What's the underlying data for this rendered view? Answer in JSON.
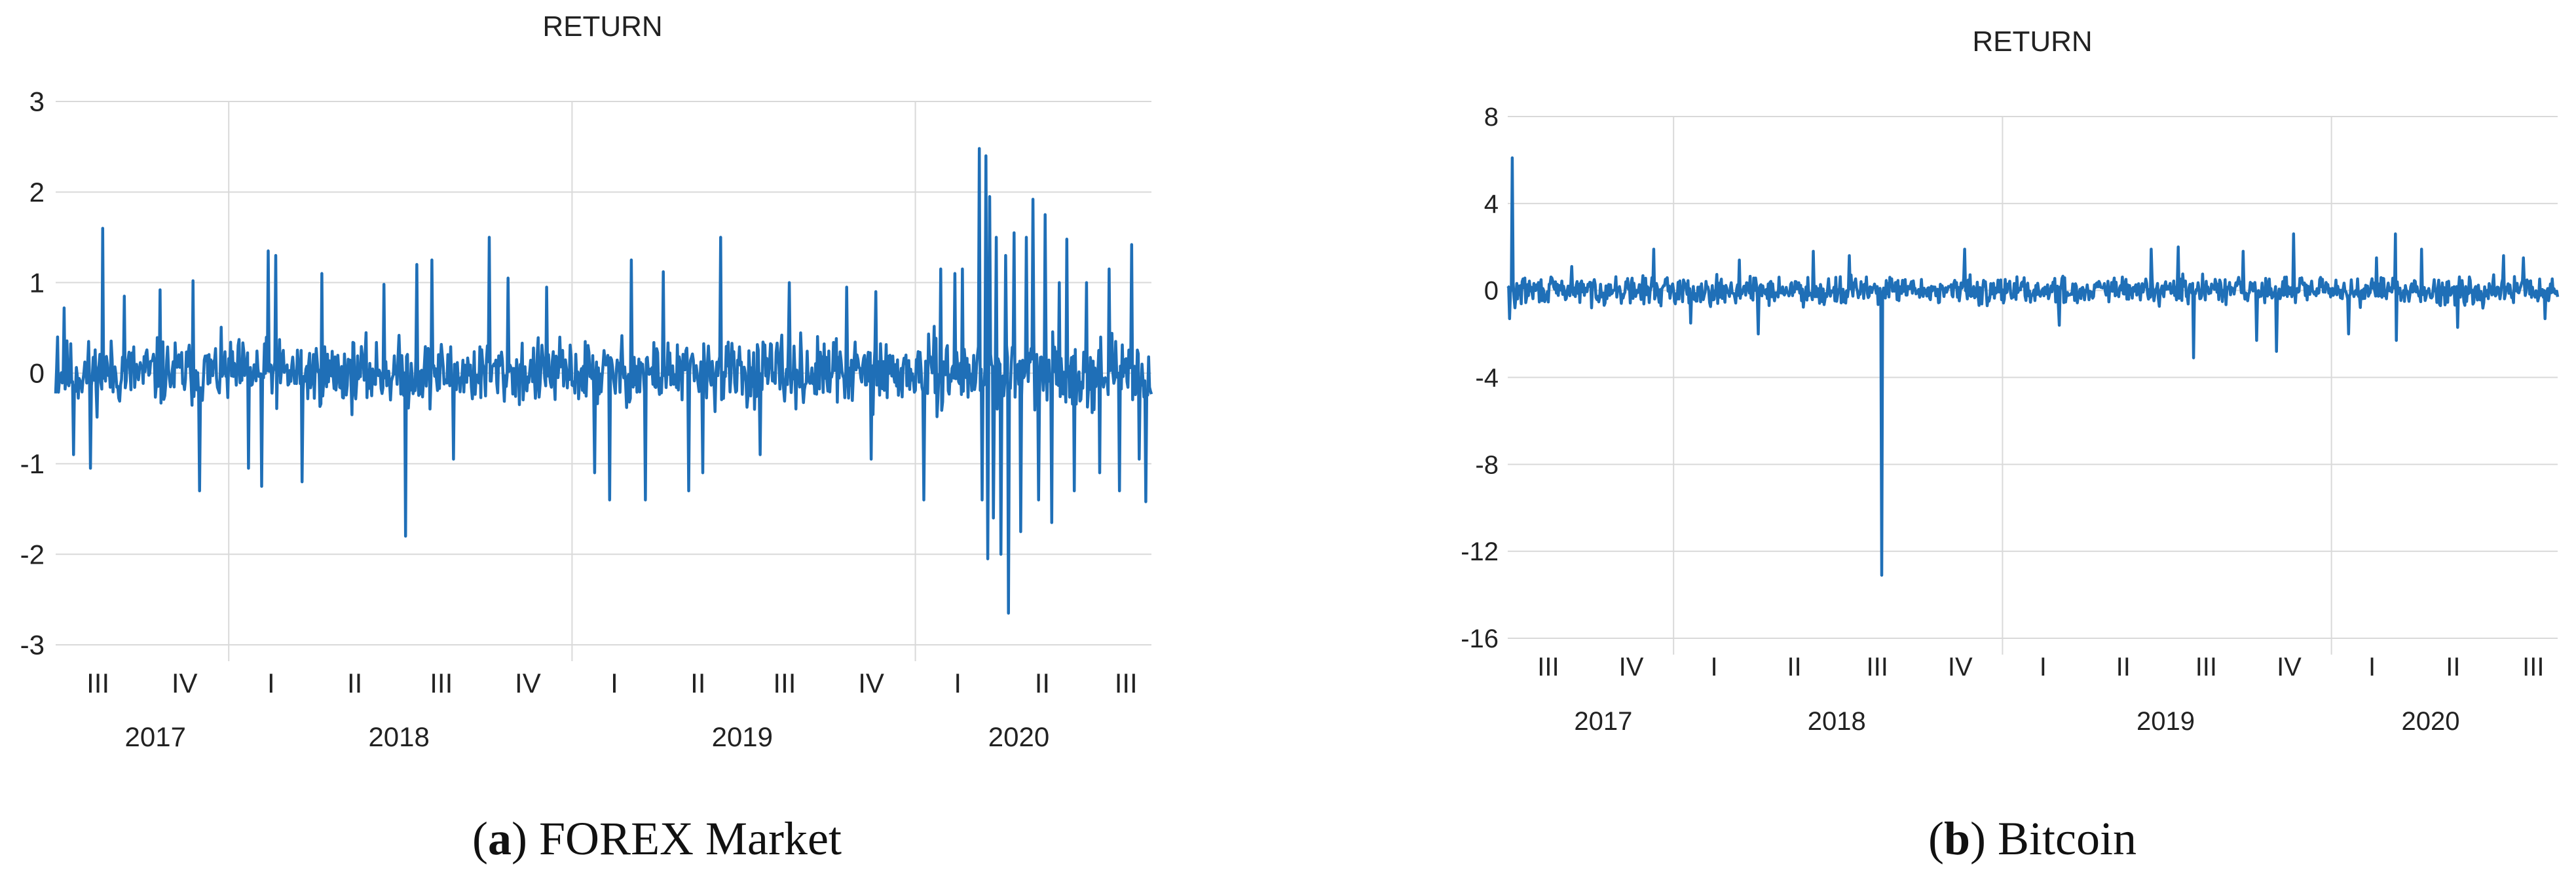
{
  "chart_data": [
    {
      "type": "line",
      "title": "RETURN",
      "caption": {
        "label": "a",
        "text": "FOREX Market"
      },
      "ylim": [
        -3,
        3
      ],
      "yticks": [
        "3",
        "2",
        "1",
        "0",
        "-1",
        "-2",
        "-3"
      ],
      "ytick_values": [
        3,
        2,
        1,
        0,
        -1,
        -2,
        -3
      ],
      "grid": true,
      "color": "#1f6fb7",
      "x_range": [
        "2017-07-01",
        "2020-09-08"
      ],
      "quarter_labels": [
        {
          "label": "III",
          "date": "2017-08-15"
        },
        {
          "label": "IV",
          "date": "2017-11-15"
        },
        {
          "label": "I",
          "date": "2018-02-15"
        },
        {
          "label": "II",
          "date": "2018-05-15"
        },
        {
          "label": "III",
          "date": "2018-08-15"
        },
        {
          "label": "IV",
          "date": "2018-11-15"
        },
        {
          "label": "I",
          "date": "2019-02-15"
        },
        {
          "label": "II",
          "date": "2019-05-15"
        },
        {
          "label": "III",
          "date": "2019-08-15"
        },
        {
          "label": "IV",
          "date": "2019-11-15"
        },
        {
          "label": "I",
          "date": "2020-02-15"
        },
        {
          "label": "II",
          "date": "2020-05-15"
        },
        {
          "label": "III",
          "date": "2020-08-12"
        }
      ],
      "year_labels": [
        {
          "label": "2017",
          "date": "2017-10-15"
        },
        {
          "label": "2018",
          "date": "2018-07-01"
        },
        {
          "label": "2019",
          "date": "2019-07-01"
        },
        {
          "label": "2020",
          "date": "2020-04-20"
        }
      ],
      "year_gridlines": [
        "2018-01-01",
        "2019-01-01",
        "2020-01-01"
      ],
      "series": [
        {
          "noise_seed": 11,
          "noise_amplitude": 0.38,
          "spikes": [
            {
              "date": "2017-07-03",
              "value": 0.4
            },
            {
              "date": "2017-07-10",
              "value": 0.72
            },
            {
              "date": "2017-07-20",
              "value": -0.9
            },
            {
              "date": "2017-08-07",
              "value": -1.05
            },
            {
              "date": "2017-08-20",
              "value": 1.6
            },
            {
              "date": "2017-09-12",
              "value": 0.85
            },
            {
              "date": "2017-10-20",
              "value": 0.92
            },
            {
              "date": "2017-11-24",
              "value": 1.02
            },
            {
              "date": "2017-12-01",
              "value": -1.3
            },
            {
              "date": "2018-01-22",
              "value": -1.05
            },
            {
              "date": "2018-02-05",
              "value": -1.25
            },
            {
              "date": "2018-02-12",
              "value": 1.35
            },
            {
              "date": "2018-02-20",
              "value": 1.3
            },
            {
              "date": "2018-03-20",
              "value": -1.2
            },
            {
              "date": "2018-04-10",
              "value": 1.1
            },
            {
              "date": "2018-06-15",
              "value": 0.98
            },
            {
              "date": "2018-07-08",
              "value": -1.8
            },
            {
              "date": "2018-07-20",
              "value": 1.2
            },
            {
              "date": "2018-08-05",
              "value": 1.25
            },
            {
              "date": "2018-08-28",
              "value": -0.95
            },
            {
              "date": "2018-10-05",
              "value": 1.5
            },
            {
              "date": "2018-10-25",
              "value": 1.05
            },
            {
              "date": "2018-12-05",
              "value": 0.95
            },
            {
              "date": "2019-01-25",
              "value": -1.1
            },
            {
              "date": "2019-02-10",
              "value": -1.4
            },
            {
              "date": "2019-03-05",
              "value": 1.25
            },
            {
              "date": "2019-03-20",
              "value": -1.4
            },
            {
              "date": "2019-04-08",
              "value": 1.12
            },
            {
              "date": "2019-05-05",
              "value": -1.3
            },
            {
              "date": "2019-05-20",
              "value": -1.1
            },
            {
              "date": "2019-06-08",
              "value": 1.5
            },
            {
              "date": "2019-07-20",
              "value": -0.9
            },
            {
              "date": "2019-08-20",
              "value": 1.0
            },
            {
              "date": "2019-10-20",
              "value": 0.95
            },
            {
              "date": "2019-11-15",
              "value": -0.95
            },
            {
              "date": "2019-11-20",
              "value": 0.9
            },
            {
              "date": "2020-01-10",
              "value": -1.4
            },
            {
              "date": "2020-01-28",
              "value": 1.15
            },
            {
              "date": "2020-02-12",
              "value": 1.1
            },
            {
              "date": "2020-02-20",
              "value": 1.15
            },
            {
              "date": "2020-03-09",
              "value": 2.48
            },
            {
              "date": "2020-03-12",
              "value": -1.4
            },
            {
              "date": "2020-03-16",
              "value": 2.4
            },
            {
              "date": "2020-03-18",
              "value": -2.05
            },
            {
              "date": "2020-03-20",
              "value": 1.95
            },
            {
              "date": "2020-03-24",
              "value": -1.6
            },
            {
              "date": "2020-03-27",
              "value": 1.5
            },
            {
              "date": "2020-04-01",
              "value": -2.0
            },
            {
              "date": "2020-04-06",
              "value": 1.3
            },
            {
              "date": "2020-04-09",
              "value": -2.65
            },
            {
              "date": "2020-04-15",
              "value": 1.55
            },
            {
              "date": "2020-04-22",
              "value": -1.75
            },
            {
              "date": "2020-04-28",
              "value": 1.5
            },
            {
              "date": "2020-05-05",
              "value": 1.92
            },
            {
              "date": "2020-05-11",
              "value": -1.4
            },
            {
              "date": "2020-05-18",
              "value": 1.75
            },
            {
              "date": "2020-05-25",
              "value": -1.65
            },
            {
              "date": "2020-06-02",
              "value": 1.0
            },
            {
              "date": "2020-06-10",
              "value": 1.48
            },
            {
              "date": "2020-06-18",
              "value": -1.3
            },
            {
              "date": "2020-07-01",
              "value": 1.0
            },
            {
              "date": "2020-07-15",
              "value": -1.1
            },
            {
              "date": "2020-07-25",
              "value": 1.15
            },
            {
              "date": "2020-08-05",
              "value": -1.3
            },
            {
              "date": "2020-08-18",
              "value": 1.42
            },
            {
              "date": "2020-08-26",
              "value": -0.95
            },
            {
              "date": "2020-09-02",
              "value": -1.42
            },
            {
              "date": "2020-09-07",
              "value": -0.2
            }
          ]
        }
      ]
    },
    {
      "type": "line",
      "title": "RETURN",
      "caption": {
        "label": "b",
        "text": "Bitcoin"
      },
      "ylim": [
        -16,
        8
      ],
      "yticks": [
        "8",
        "4",
        "0",
        "-4",
        "-8",
        "-12",
        "-16"
      ],
      "ytick_values": [
        8,
        4,
        0,
        -4,
        -8,
        -12,
        -16
      ],
      "grid": true,
      "color": "#1f6fb7",
      "x_range": [
        "2017-07-01",
        "2020-09-08"
      ],
      "quarter_labels": [
        {
          "label": "III",
          "date": "2017-08-15"
        },
        {
          "label": "IV",
          "date": "2017-11-15"
        },
        {
          "label": "I",
          "date": "2018-02-15"
        },
        {
          "label": "II",
          "date": "2018-05-15"
        },
        {
          "label": "III",
          "date": "2018-08-15"
        },
        {
          "label": "IV",
          "date": "2018-11-15"
        },
        {
          "label": "I",
          "date": "2019-02-15"
        },
        {
          "label": "II",
          "date": "2019-05-15"
        },
        {
          "label": "III",
          "date": "2019-08-15"
        },
        {
          "label": "IV",
          "date": "2019-11-15"
        },
        {
          "label": "I",
          "date": "2020-02-15"
        },
        {
          "label": "II",
          "date": "2020-05-15"
        },
        {
          "label": "III",
          "date": "2020-08-12"
        }
      ],
      "year_labels": [
        {
          "label": "2017",
          "date": "2017-10-15"
        },
        {
          "label": "2018",
          "date": "2018-07-01"
        },
        {
          "label": "2019",
          "date": "2019-07-01"
        },
        {
          "label": "2020",
          "date": "2020-04-20"
        }
      ],
      "year_gridlines": [
        "2018-01-01",
        "2019-01-01",
        "2020-01-01"
      ],
      "series": [
        {
          "noise_seed": 29,
          "noise_amplitude": 0.65,
          "spikes": [
            {
              "date": "2017-07-03",
              "value": -1.3
            },
            {
              "date": "2017-07-06",
              "value": 6.1
            },
            {
              "date": "2017-07-09",
              "value": -0.8
            },
            {
              "date": "2017-09-10",
              "value": 1.1
            },
            {
              "date": "2017-12-10",
              "value": 1.9
            },
            {
              "date": "2018-01-20",
              "value": -1.5
            },
            {
              "date": "2018-03-15",
              "value": 1.4
            },
            {
              "date": "2018-04-05",
              "value": -2.0
            },
            {
              "date": "2018-06-05",
              "value": 1.8
            },
            {
              "date": "2018-07-15",
              "value": 1.6
            },
            {
              "date": "2018-08-20",
              "value": -13.1
            },
            {
              "date": "2018-11-20",
              "value": 1.9
            },
            {
              "date": "2019-03-05",
              "value": -1.6
            },
            {
              "date": "2019-06-15",
              "value": 1.9
            },
            {
              "date": "2019-07-15",
              "value": 2.0
            },
            {
              "date": "2019-08-01",
              "value": -3.1
            },
            {
              "date": "2019-09-25",
              "value": 1.8
            },
            {
              "date": "2019-10-10",
              "value": -2.3
            },
            {
              "date": "2019-11-01",
              "value": -2.8
            },
            {
              "date": "2019-11-20",
              "value": 2.6
            },
            {
              "date": "2020-01-20",
              "value": -2.0
            },
            {
              "date": "2020-02-20",
              "value": 1.5
            },
            {
              "date": "2020-03-12",
              "value": 2.6
            },
            {
              "date": "2020-03-13",
              "value": -2.3
            },
            {
              "date": "2020-04-10",
              "value": 1.9
            },
            {
              "date": "2020-05-20",
              "value": -1.7
            },
            {
              "date": "2020-07-10",
              "value": 1.6
            },
            {
              "date": "2020-08-01",
              "value": 1.5
            },
            {
              "date": "2020-08-25",
              "value": -1.3
            }
          ]
        }
      ]
    }
  ]
}
